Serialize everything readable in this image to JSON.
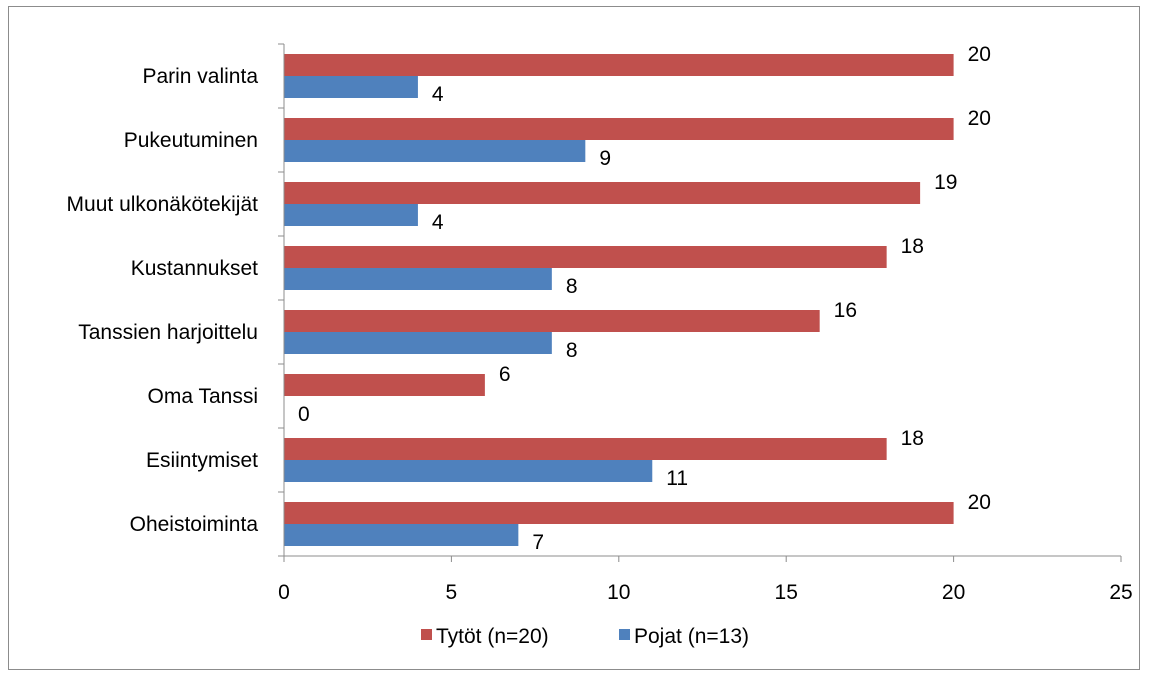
{
  "chart_data": {
    "type": "bar",
    "orientation": "horizontal",
    "categories": [
      "Parin valinta",
      "Pukeutuminen",
      "Muut ulkonäkötekijät",
      "Kustannukset",
      "Tanssien harjoittelu",
      "Oma Tanssi",
      "Esiintymiset",
      "Oheistoiminta"
    ],
    "series": [
      {
        "name": "Tytöt (n=20)",
        "color": "#c0504d",
        "values": [
          20,
          20,
          19,
          18,
          16,
          6,
          18,
          20
        ]
      },
      {
        "name": "Pojat (n=13)",
        "color": "#4f81bd",
        "values": [
          4,
          9,
          4,
          8,
          8,
          0,
          11,
          7
        ]
      }
    ],
    "xlim": [
      0,
      25
    ],
    "xticks": [
      0,
      5,
      10,
      15,
      20,
      25
    ],
    "title": "",
    "xlabel": "",
    "ylabel": "",
    "grid": false,
    "legend_position": "bottom"
  }
}
